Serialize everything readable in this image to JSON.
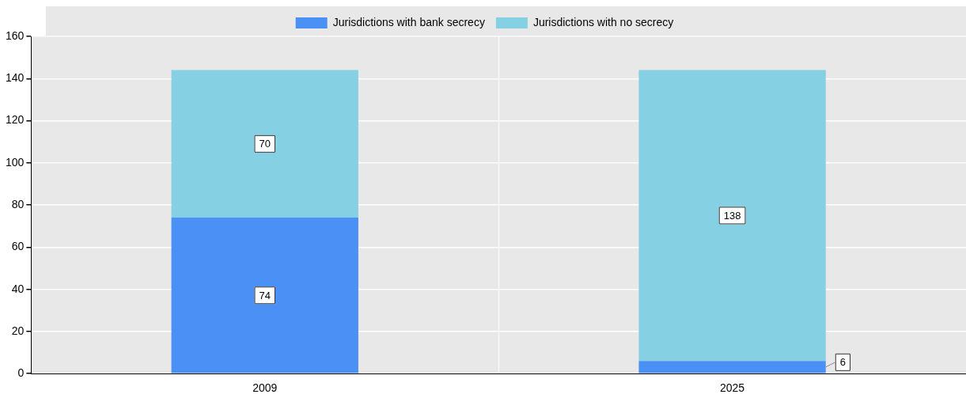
{
  "chart_data": {
    "type": "bar",
    "stacked": true,
    "categories": [
      "2009",
      "2025"
    ],
    "series": [
      {
        "name": "Jurisdictions with bank secrecy",
        "color": "#4a90f5",
        "values": [
          74,
          6
        ]
      },
      {
        "name": "Jurisdictions with no secrecy",
        "color": "#85d0e3",
        "values": [
          70,
          138
        ]
      }
    ],
    "ylim": [
      0,
      160
    ],
    "yticks": [
      0,
      20,
      40,
      60,
      80,
      100,
      120,
      140,
      160
    ],
    "grid": "y",
    "legend": "top",
    "data_labels": true
  }
}
